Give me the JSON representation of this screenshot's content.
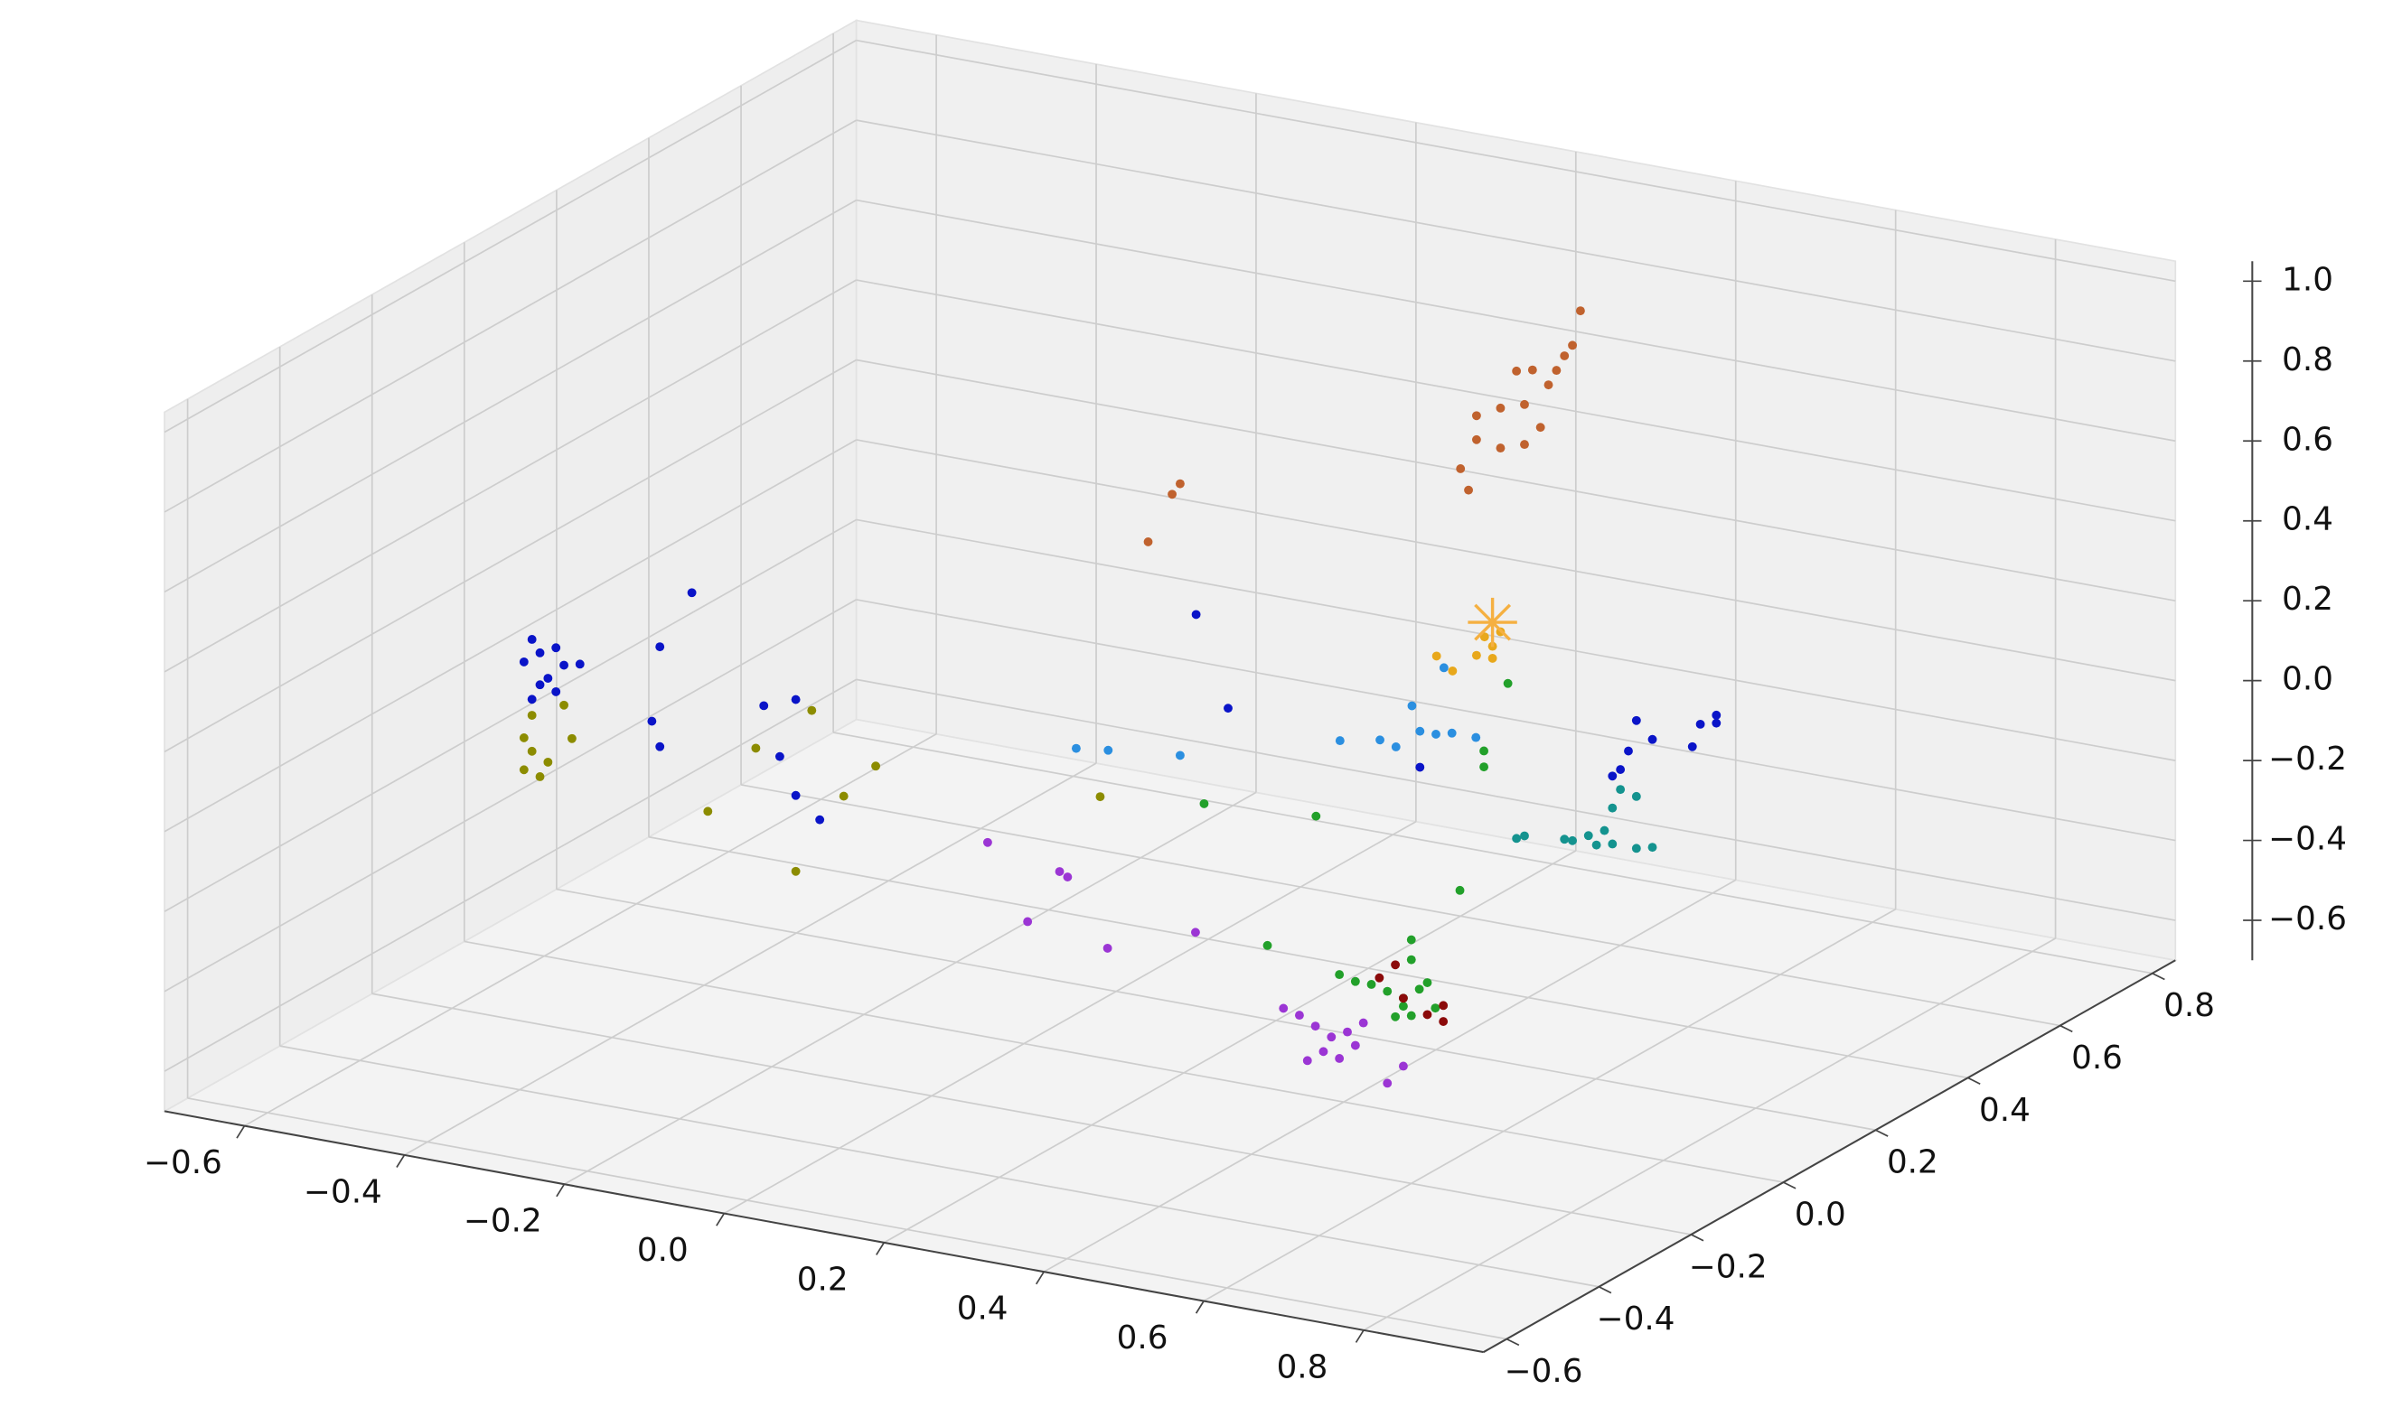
{
  "chart_data": {
    "type": "scatter3d",
    "xlim": [
      -0.7,
      0.95
    ],
    "ylim": [
      -0.65,
      0.85
    ],
    "zlim": [
      -0.7,
      1.05
    ],
    "xticks": [
      {
        "value": -0.6,
        "label": "−0.6"
      },
      {
        "value": -0.4,
        "label": "−0.4"
      },
      {
        "value": -0.2,
        "label": "−0.2"
      },
      {
        "value": 0,
        "label": "0.0"
      },
      0.2,
      0.4,
      0.6,
      0.8
    ],
    "yticks": [
      {
        "value": -0.6,
        "label": "−0.6"
      },
      {
        "value": -0.4,
        "label": "−0.4"
      },
      {
        "value": -0.2,
        "label": "−0.2"
      },
      {
        "value": 0,
        "label": "0.0"
      },
      0.2,
      0.4,
      0.6,
      0.8
    ],
    "zticks": [
      {
        "value": -0.6,
        "label": "−0.6"
      },
      {
        "value": -0.4,
        "label": "−0.4"
      },
      {
        "value": -0.2,
        "label": "−0.2"
      },
      {
        "value": 0,
        "label": "0.0"
      },
      0.2,
      0.4,
      0.6,
      0.8,
      {
        "value": 1,
        "label": "1.0"
      }
    ],
    "grid": true,
    "series": [
      {
        "color": "#0a14c8",
        "x": [
          -0.5,
          -0.49,
          -0.47,
          -0.51,
          -0.48,
          -0.46,
          -0.44,
          -0.49,
          -0.5,
          -0.47,
          -0.3,
          -0.34,
          -0.35,
          -0.34,
          -0.21,
          -0.17,
          -0.19,
          -0.17,
          -0.14,
          0.1,
          0.14,
          0.38,
          0.42,
          0.41,
          0.4,
          0.44,
          0.5,
          0.52,
          0.52,
          0.49,
          0.39
        ],
        "y": [
          -0.2,
          -0.2,
          -0.2,
          -0.2,
          -0.2,
          -0.2,
          -0.2,
          -0.2,
          -0.2,
          -0.2,
          -0.2,
          -0.2,
          -0.2,
          -0.2,
          -0.2,
          -0.2,
          -0.2,
          -0.2,
          -0.2,
          0.2,
          0.2,
          0.2,
          0.6,
          0.6,
          0.6,
          0.6,
          0.6,
          0.6,
          0.6,
          0.6,
          0.6
        ],
        "z": [
          0.26,
          0.23,
          0.25,
          0.2,
          0.17,
          0.21,
          0.22,
          0.15,
          0.11,
          0.14,
          0.45,
          0.3,
          0.11,
          0.05,
          0.2,
          0.23,
          0.08,
          -0.01,
          -0.06,
          0.28,
          0.06,
          0.0,
          -0.13,
          -0.21,
          -0.26,
          -0.17,
          -0.11,
          -0.08,
          -0.1,
          -0.17,
          -0.28
        ]
      },
      {
        "color": "#8c8c00",
        "x": [
          -0.5,
          -0.51,
          -0.5,
          -0.51,
          -0.48,
          -0.49,
          -0.45,
          -0.46,
          -0.15,
          -0.22,
          -0.28,
          -0.11,
          -0.07,
          -0.17,
          -0.02
        ],
        "y": [
          -0.2,
          -0.2,
          -0.2,
          -0.2,
          -0.2,
          -0.2,
          -0.2,
          -0.2,
          -0.2,
          -0.2,
          -0.2,
          -0.2,
          -0.2,
          -0.2,
          0.2
        ],
        "z": [
          0.07,
          0.01,
          -0.02,
          -0.07,
          -0.04,
          -0.08,
          0.03,
          0.11,
          0.21,
          0.09,
          -0.09,
          0.01,
          0.1,
          -0.2,
          -0.22
        ]
      },
      {
        "color": "#c0622e",
        "x": [
          0.35,
          0.34,
          0.32,
          0.29,
          0.27,
          0.31,
          0.28,
          0.25,
          0.22,
          0.22,
          0.2,
          0.21,
          0.25,
          0.28,
          0.3,
          0.33,
          0.08,
          0.07,
          0.04
        ],
        "y": [
          0.6,
          0.6,
          0.6,
          0.6,
          0.6,
          0.6,
          0.6,
          0.6,
          0.6,
          0.6,
          0.6,
          0.6,
          0.6,
          0.6,
          0.6,
          0.6,
          0.2,
          0.2,
          0.2
        ],
        "z": [
          0.87,
          0.78,
          0.71,
          0.7,
          0.69,
          0.67,
          0.61,
          0.59,
          0.56,
          0.5,
          0.42,
          0.37,
          0.49,
          0.51,
          0.56,
          0.75,
          0.6,
          0.57,
          0.44
        ]
      },
      {
        "color": "#e8a81c",
        "x": [
          0.23,
          0.24,
          0.22,
          0.25,
          0.24,
          0.17,
          0.19
        ],
        "y": [
          0.6,
          0.6,
          0.6,
          0.6,
          0.6,
          0.6,
          0.6
        ],
        "z": [
          0.01,
          -0.01,
          -0.04,
          0.03,
          -0.04,
          -0.06,
          -0.09
        ]
      },
      {
        "color": "#f5b041",
        "marker": "star",
        "x": [
          0.24
        ],
        "y": [
          0.6
        ],
        "z": [
          0.05
        ]
      },
      {
        "color": "#2b8fe0",
        "x": [
          -0.05,
          -0.01,
          0.08,
          0.28,
          0.33,
          0.35,
          0.37,
          0.38,
          0.4,
          0.42,
          0.45,
          0.41
        ],
        "y": [
          0.2,
          0.2,
          0.2,
          0.2,
          0.2,
          0.2,
          0.2,
          0.2,
          0.2,
          0.2,
          0.2,
          0.2
        ],
        "z": [
          -0.11,
          -0.1,
          -0.08,
          0.03,
          0.05,
          0.04,
          0.15,
          0.09,
          0.09,
          0.1,
          0.1,
          0.26
        ]
      },
      {
        "color": "#14938f",
        "x": [
          0.27,
          0.28,
          0.33,
          0.34,
          0.36,
          0.38,
          0.39,
          0.4,
          0.42,
          0.39,
          0.42,
          0.44,
          0.37
        ],
        "y": [
          0.6,
          0.6,
          0.6,
          0.6,
          0.6,
          0.6,
          0.6,
          0.6,
          0.6,
          0.6,
          0.6,
          0.6,
          0.6
        ],
        "z": [
          -0.48,
          -0.47,
          -0.46,
          -0.46,
          -0.44,
          -0.42,
          -0.36,
          -0.31,
          -0.32,
          -0.45,
          -0.45,
          -0.44,
          -0.46
        ]
      },
      {
        "color": "#22a02a",
        "x": [
          0.51,
          0.53,
          0.55,
          0.57,
          0.59,
          0.59,
          0.6,
          0.61,
          0.62,
          0.6,
          0.6,
          0.63,
          0.58,
          0.42,
          0.43,
          0.46,
          0.46,
          0.25,
          0.11,
          0.49
        ],
        "y": [
          -0.2,
          -0.2,
          -0.2,
          -0.2,
          -0.2,
          -0.2,
          -0.2,
          -0.2,
          -0.2,
          -0.2,
          -0.2,
          -0.2,
          -0.2,
          -0.2,
          0.2,
          0.2,
          0.2,
          0.2,
          0.2,
          0.2
        ],
        "z": [
          -0.21,
          -0.22,
          -0.22,
          -0.23,
          -0.24,
          -0.26,
          -0.28,
          -0.21,
          -0.19,
          -0.14,
          -0.09,
          -0.25,
          -0.29,
          -0.17,
          -0.29,
          0.07,
          0.03,
          -0.17,
          -0.19,
          0.25
        ]
      },
      {
        "color": "#8b0a0a",
        "x": [
          0.56,
          0.59,
          0.64,
          0.64,
          0.62,
          0.58
        ],
        "y": [
          -0.2,
          -0.2,
          -0.2,
          -0.2,
          -0.2,
          -0.2
        ],
        "z": [
          -0.2,
          -0.24,
          -0.24,
          -0.28,
          -0.27,
          -0.16
        ]
      },
      {
        "color": "#9b35d4",
        "x": [
          0.44,
          0.46,
          0.48,
          0.5,
          0.52,
          0.53,
          0.49,
          0.47,
          0.51,
          0.54,
          0.57,
          0.59,
          0.07,
          0.16,
          0.17,
          0.12,
          0.22,
          0.33
        ],
        "y": [
          -0.2,
          -0.2,
          -0.2,
          -0.2,
          -0.2,
          -0.2,
          -0.2,
          -0.2,
          -0.2,
          -0.2,
          -0.2,
          -0.2,
          -0.2,
          -0.2,
          -0.2,
          -0.2,
          -0.2,
          -0.2
        ],
        "z": [
          -0.32,
          -0.33,
          -0.35,
          -0.37,
          -0.35,
          -0.38,
          -0.41,
          -0.44,
          -0.42,
          -0.32,
          -0.46,
          -0.41,
          -0.04,
          -0.08,
          -0.09,
          -0.22,
          -0.25,
          -0.17
        ]
      }
    ]
  }
}
